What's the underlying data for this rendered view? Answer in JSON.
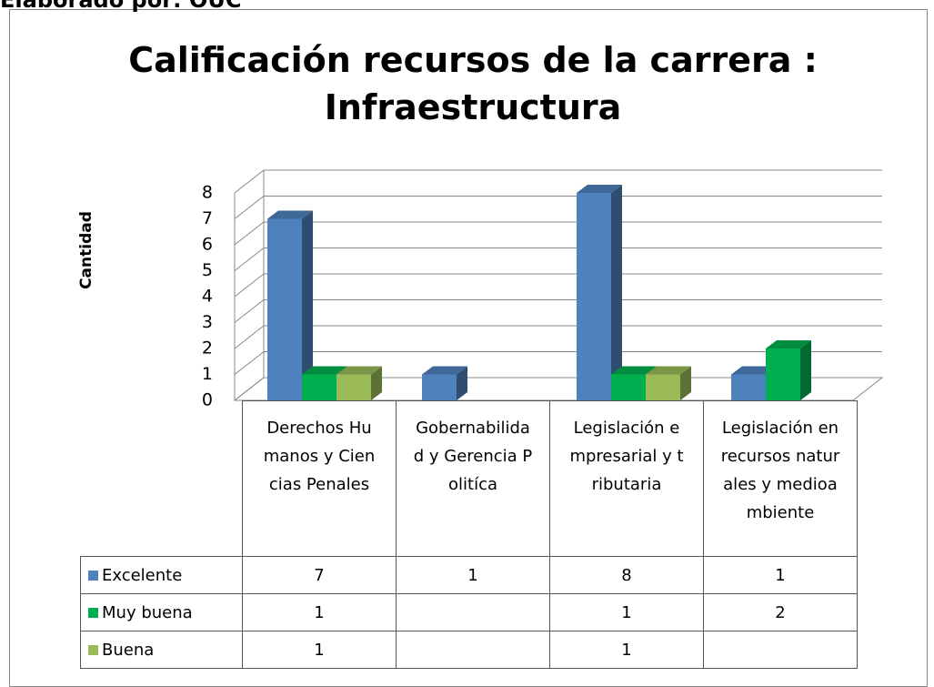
{
  "chart_data": {
    "type": "bar3d",
    "note": "Elaborado por: OUC",
    "title": "Calificación recursos de la carrera : Infraestructura",
    "y_label": "Cantidad",
    "categories": [
      "Derechos Humanos y Ciencias Penales",
      "Gobernabilidad y Gerencia Politíca",
      "Legislación empresarial y tributaria",
      "Legislación en recursos naturales y medioambiente"
    ],
    "series": [
      {
        "name": "Excelente",
        "color": "#4f81bd",
        "values": [
          7,
          1,
          8,
          1
        ]
      },
      {
        "name": "Muy buena",
        "color": "#00b050",
        "values": [
          1,
          null,
          1,
          2
        ]
      },
      {
        "name": "Buena",
        "color": "#9bbb59",
        "values": [
          1,
          null,
          1,
          null
        ]
      }
    ],
    "ylim": [
      0,
      8
    ],
    "yticks": [
      0,
      1,
      2,
      3,
      4,
      5,
      6,
      7,
      8
    ],
    "grid": true,
    "legend": "table"
  }
}
